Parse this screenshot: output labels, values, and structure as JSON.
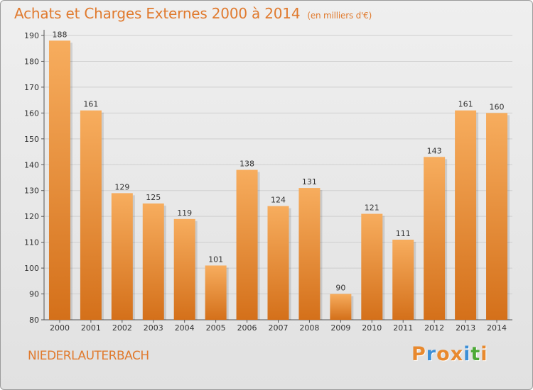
{
  "header": {
    "title": "Achats et Charges Externes 2000 à 2014",
    "subtitle": "(en milliers d'€)"
  },
  "footer": {
    "locality": "NIEDERLAUTERBACH",
    "logo_text": "Proxiti"
  },
  "colors": {
    "bar_top": "#f7ad5e",
    "bar_bottom": "#d4701a",
    "title": "#e07a2e",
    "logo_letters": [
      "#e8892e",
      "#3d8fd6",
      "#e8892e",
      "#e8892e",
      "#3d8fd6",
      "#4caa36",
      "#e8892e"
    ]
  },
  "chart_data": {
    "type": "bar",
    "categories": [
      "2000",
      "2001",
      "2002",
      "2003",
      "2004",
      "2005",
      "2006",
      "2007",
      "2008",
      "2009",
      "2010",
      "2011",
      "2012",
      "2013",
      "2014"
    ],
    "values": [
      188,
      161,
      129,
      125,
      119,
      101,
      138,
      124,
      131,
      90,
      121,
      111,
      143,
      161,
      160
    ],
    "title": "Achats et Charges Externes 2000 à 2014",
    "ylim": [
      80,
      190
    ],
    "yticks": [
      80,
      90,
      100,
      110,
      120,
      130,
      140,
      150,
      160,
      170,
      180,
      190
    ],
    "grid": true
  }
}
